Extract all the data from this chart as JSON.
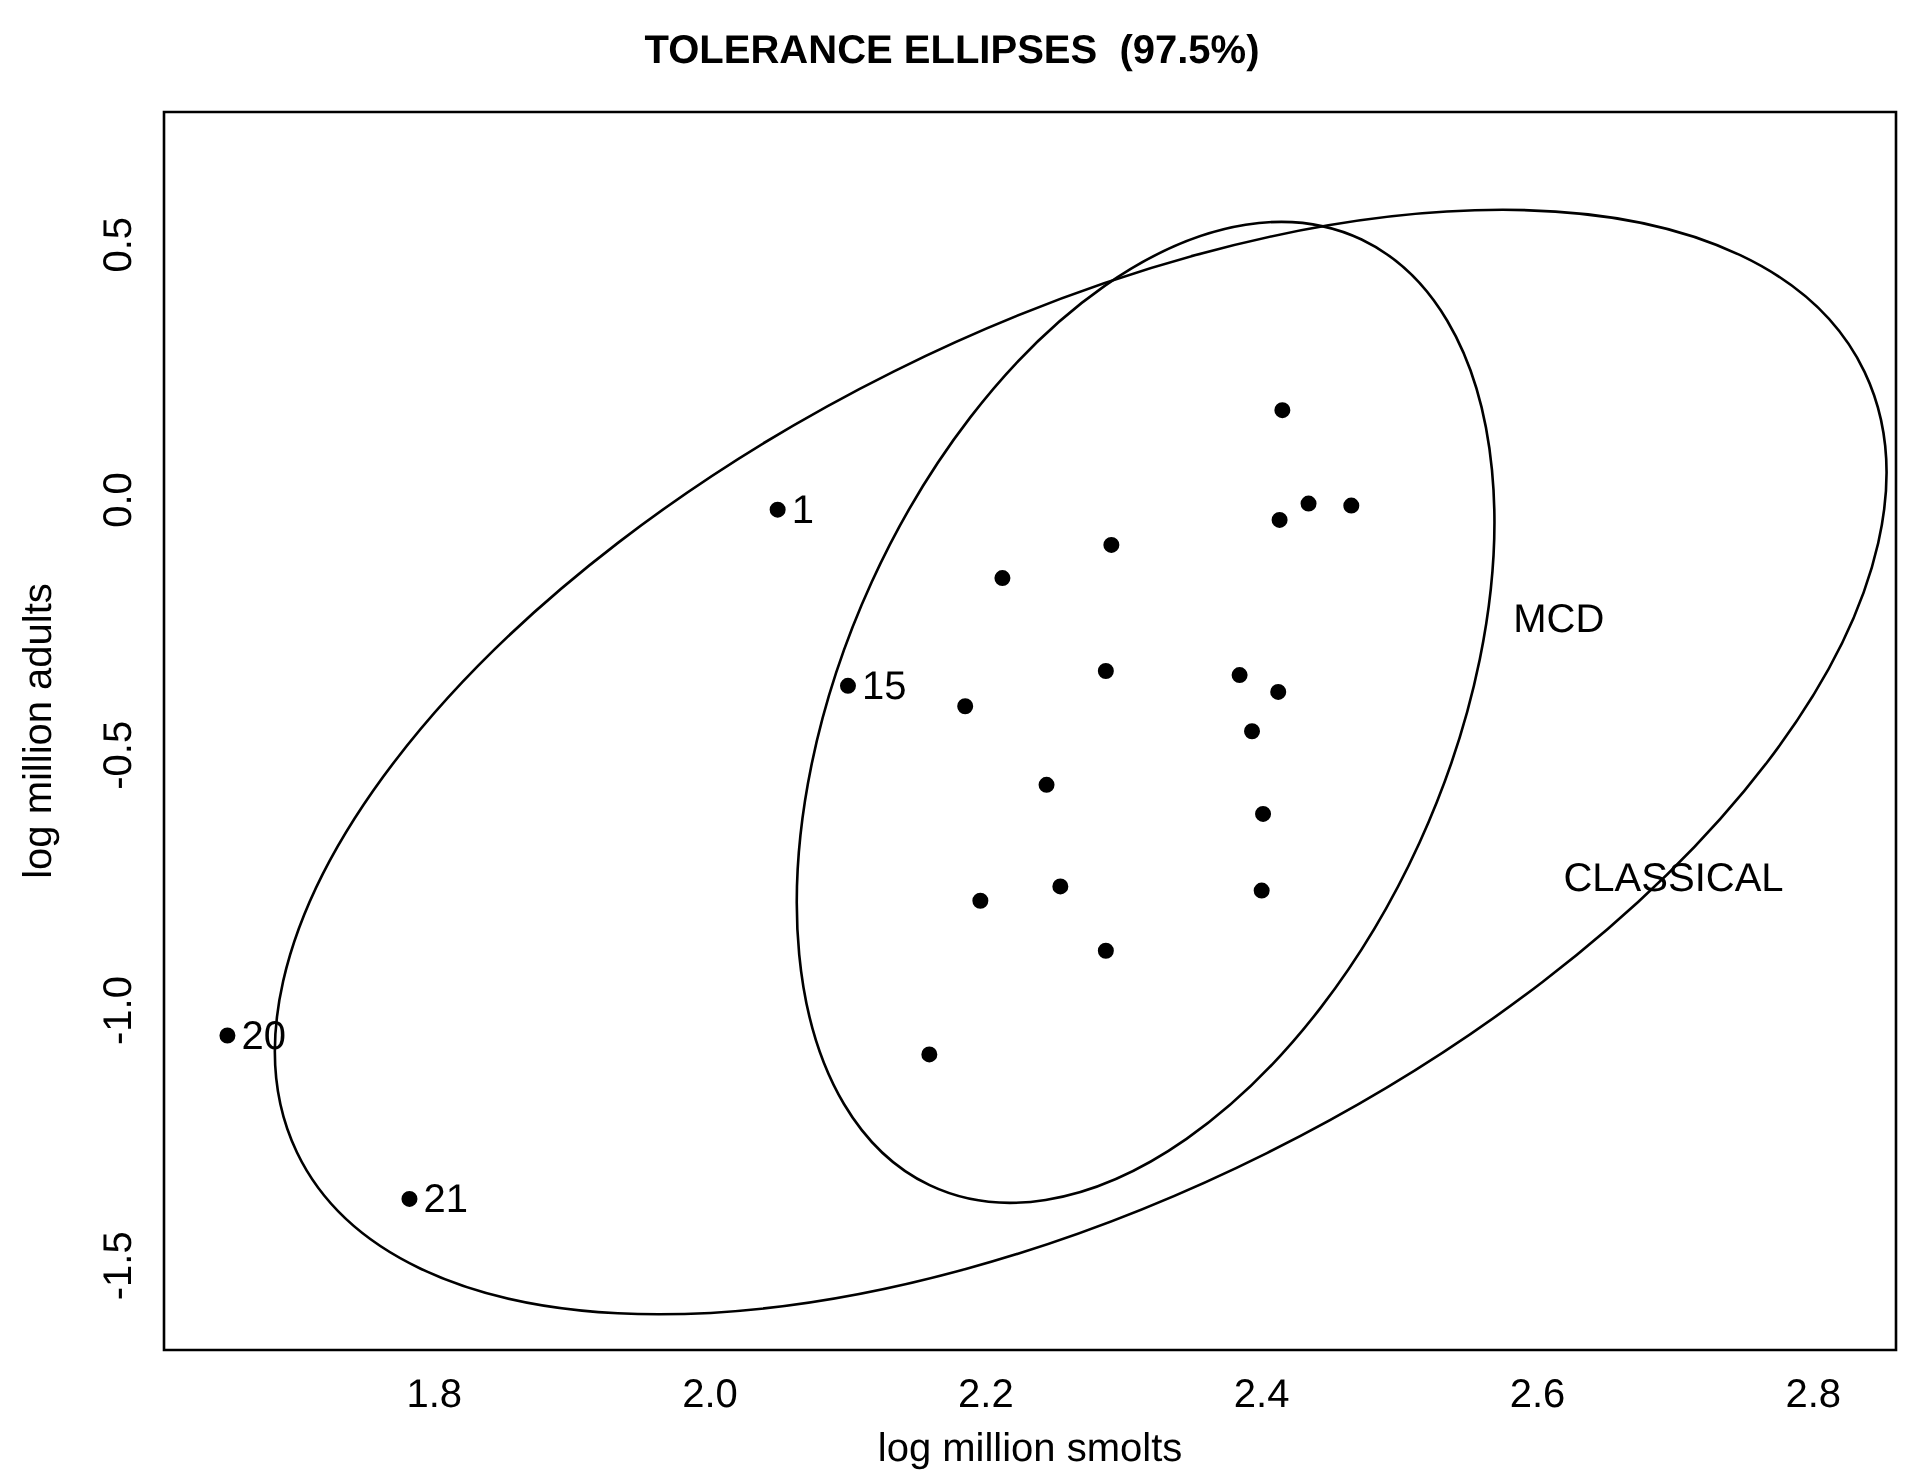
{
  "chart_data": {
    "type": "scatter",
    "title": "TOLERANCE ELLIPSES  (97.5%)",
    "xlabel": "log million smolts",
    "ylabel": "log million adults",
    "xlim": [
      1.604,
      2.86
    ],
    "ylim": [
      -1.665,
      0.76
    ],
    "xticks": [
      1.8,
      {
        "value": 2,
        "label": "2.0"
      },
      2.2,
      2.4,
      2.6,
      2.8
    ],
    "yticks": [
      -1.5,
      {
        "value": -1,
        "label": "-1.0"
      },
      -0.5,
      {
        "value": 0,
        "label": "0.0"
      },
      0.5
    ],
    "grid": false,
    "legend": false,
    "marker": "circle",
    "series": [
      {
        "type": "scatter",
        "color": "#000000",
        "x": [
          2.049,
          2.1,
          1.65,
          1.782,
          2.415,
          2.434,
          2.465,
          2.413,
          2.291,
          2.212,
          2.287,
          2.384,
          2.412,
          2.185,
          2.393,
          2.244,
          2.401,
          2.196,
          2.254,
          2.4,
          2.287,
          2.159
        ],
        "values": [
          -0.019,
          -0.364,
          -1.049,
          -1.369,
          0.176,
          -0.007,
          -0.011,
          -0.039,
          -0.088,
          -0.153,
          -0.335,
          -0.343,
          -0.376,
          -0.404,
          -0.453,
          -0.558,
          -0.615,
          -0.785,
          -0.757,
          -0.765,
          -0.883,
          -1.086
        ]
      }
    ],
    "annotations": [
      {
        "text": "1",
        "x": 2.049,
        "y": -0.019
      },
      {
        "text": "15",
        "x": 2.1,
        "y": -0.364
      },
      {
        "text": "20",
        "x": 1.65,
        "y": -1.049
      },
      {
        "text": "21",
        "x": 1.782,
        "y": -1.369
      },
      "MCD",
      "CLASSICAL"
    ]
  }
}
